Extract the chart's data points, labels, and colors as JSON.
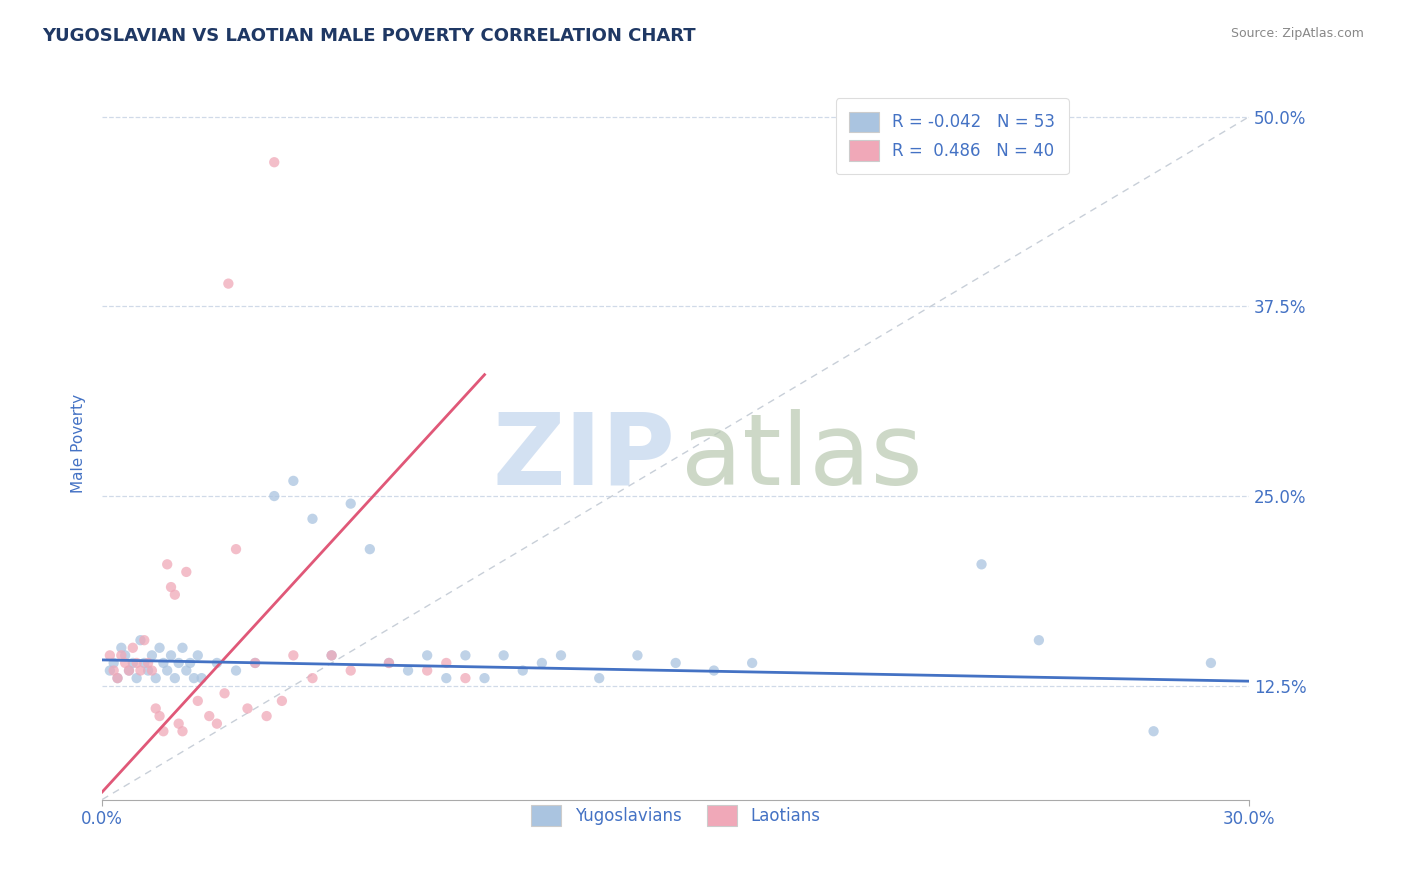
{
  "title": "YUGOSLAVIAN VS LAOTIAN MALE POVERTY CORRELATION CHART",
  "source": "Source: ZipAtlas.com",
  "ylabel_label": "Male Poverty",
  "legend_yug": {
    "R": "-0.042",
    "N": "53"
  },
  "legend_lao": {
    "R": "0.486",
    "N": "40"
  },
  "xlim": [
    0.0,
    30.0
  ],
  "ylim": [
    5.0,
    52.0
  ],
  "ytick_vals": [
    12.5,
    25.0,
    37.5,
    50.0
  ],
  "ytick_labels": [
    "12.5%",
    "25.0%",
    "37.5%",
    "50.0%"
  ],
  "yug_color": "#aac4e0",
  "lao_color": "#f0a8b8",
  "yug_line_color": "#4472c4",
  "lao_line_color": "#e05878",
  "ref_line_color": "#c8cfd8",
  "title_color": "#1f3864",
  "axis_label_color": "#4472c4",
  "yug_scatter": [
    [
      0.2,
      13.5
    ],
    [
      0.3,
      14.0
    ],
    [
      0.4,
      13.0
    ],
    [
      0.5,
      15.0
    ],
    [
      0.6,
      14.5
    ],
    [
      0.7,
      13.5
    ],
    [
      0.8,
      14.0
    ],
    [
      0.9,
      13.0
    ],
    [
      1.0,
      15.5
    ],
    [
      1.1,
      14.0
    ],
    [
      1.2,
      13.5
    ],
    [
      1.3,
      14.5
    ],
    [
      1.4,
      13.0
    ],
    [
      1.5,
      15.0
    ],
    [
      1.6,
      14.0
    ],
    [
      1.7,
      13.5
    ],
    [
      1.8,
      14.5
    ],
    [
      1.9,
      13.0
    ],
    [
      2.0,
      14.0
    ],
    [
      2.1,
      15.0
    ],
    [
      2.2,
      13.5
    ],
    [
      2.3,
      14.0
    ],
    [
      2.4,
      13.0
    ],
    [
      2.5,
      14.5
    ],
    [
      2.6,
      13.0
    ],
    [
      3.0,
      14.0
    ],
    [
      3.5,
      13.5
    ],
    [
      4.0,
      14.0
    ],
    [
      4.5,
      25.0
    ],
    [
      5.0,
      26.0
    ],
    [
      5.5,
      23.5
    ],
    [
      6.0,
      14.5
    ],
    [
      6.5,
      24.5
    ],
    [
      7.0,
      21.5
    ],
    [
      7.5,
      14.0
    ],
    [
      8.0,
      13.5
    ],
    [
      8.5,
      14.5
    ],
    [
      9.0,
      13.0
    ],
    [
      9.5,
      14.5
    ],
    [
      10.0,
      13.0
    ],
    [
      10.5,
      14.5
    ],
    [
      11.0,
      13.5
    ],
    [
      11.5,
      14.0
    ],
    [
      12.0,
      14.5
    ],
    [
      13.0,
      13.0
    ],
    [
      14.0,
      14.5
    ],
    [
      15.0,
      14.0
    ],
    [
      16.0,
      13.5
    ],
    [
      17.0,
      14.0
    ],
    [
      23.0,
      20.5
    ],
    [
      24.5,
      15.5
    ],
    [
      27.5,
      9.5
    ],
    [
      29.0,
      14.0
    ]
  ],
  "lao_scatter": [
    [
      0.2,
      14.5
    ],
    [
      0.3,
      13.5
    ],
    [
      0.4,
      13.0
    ],
    [
      0.5,
      14.5
    ],
    [
      0.6,
      14.0
    ],
    [
      0.7,
      13.5
    ],
    [
      0.8,
      15.0
    ],
    [
      0.9,
      14.0
    ],
    [
      1.0,
      13.5
    ],
    [
      1.1,
      15.5
    ],
    [
      1.2,
      14.0
    ],
    [
      1.3,
      13.5
    ],
    [
      1.4,
      11.0
    ],
    [
      1.5,
      10.5
    ],
    [
      1.6,
      9.5
    ],
    [
      1.7,
      20.5
    ],
    [
      1.8,
      19.0
    ],
    [
      1.9,
      18.5
    ],
    [
      2.0,
      10.0
    ],
    [
      2.1,
      9.5
    ],
    [
      2.2,
      20.0
    ],
    [
      2.5,
      11.5
    ],
    [
      2.8,
      10.5
    ],
    [
      3.0,
      10.0
    ],
    [
      3.2,
      12.0
    ],
    [
      3.5,
      21.5
    ],
    [
      3.8,
      11.0
    ],
    [
      4.0,
      14.0
    ],
    [
      4.3,
      10.5
    ],
    [
      4.7,
      11.5
    ],
    [
      5.0,
      14.5
    ],
    [
      5.5,
      13.0
    ],
    [
      6.0,
      14.5
    ],
    [
      6.5,
      13.5
    ],
    [
      3.3,
      39.0
    ],
    [
      4.5,
      47.0
    ],
    [
      7.5,
      14.0
    ],
    [
      8.5,
      13.5
    ],
    [
      9.0,
      14.0
    ],
    [
      9.5,
      13.0
    ]
  ],
  "lao_trend_x": [
    0.0,
    10.0
  ],
  "lao_trend_y": [
    5.5,
    33.0
  ],
  "yug_trend_x": [
    0.0,
    30.0
  ],
  "yug_trend_y": [
    14.2,
    12.8
  ]
}
